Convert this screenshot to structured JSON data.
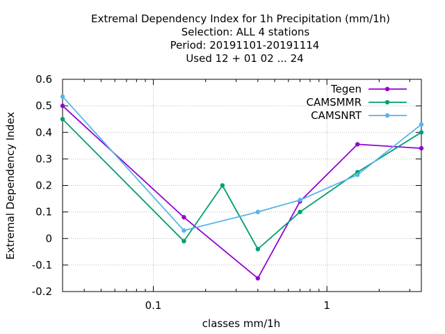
{
  "chart_data": {
    "type": "line",
    "title_lines": [
      "Extremal Dependency Index  for 1h Precipitation (mm/1h)",
      "Selection: ALL      4 stations",
      "Period: 20191101-20191114",
      "Used  12 + 01 02 ... 24"
    ],
    "xlabel": "classes mm/1h",
    "ylabel": "Extremal Dependency Index",
    "x_scale": "log",
    "xlim": [
      0.03,
      3.5
    ],
    "ylim": [
      -0.2,
      0.6
    ],
    "grid": true,
    "legend_position": "top-right",
    "x_ticks": [
      {
        "value": 0.1,
        "label": "0.1"
      },
      {
        "value": 1,
        "label": "1"
      }
    ],
    "y_ticks": [
      {
        "value": 0.6,
        "label": "0.6"
      },
      {
        "value": 0.5,
        "label": "0.5"
      },
      {
        "value": 0.4,
        "label": "0.4"
      },
      {
        "value": 0.3,
        "label": "0.3"
      },
      {
        "value": 0.2,
        "label": "0.2"
      },
      {
        "value": 0.1,
        "label": "0.1"
      },
      {
        "value": 0,
        "label": "0"
      },
      {
        "value": -0.1,
        "label": "-0.1"
      },
      {
        "value": -0.2,
        "label": "-0.2"
      }
    ],
    "series": [
      {
        "name": "Tegen",
        "color": "#9400d3",
        "points": [
          [
            0.03,
            0.5
          ],
          [
            0.15,
            0.08
          ],
          [
            0.4,
            -0.15
          ],
          [
            0.7,
            0.14
          ],
          [
            1.5,
            0.355
          ],
          [
            3.5,
            0.34
          ]
        ]
      },
      {
        "name": "CAMSMMR",
        "color": "#009e73",
        "points": [
          [
            0.03,
            0.45
          ],
          [
            0.15,
            -0.01
          ],
          [
            0.25,
            0.2
          ],
          [
            0.4,
            -0.04
          ],
          [
            0.7,
            0.1
          ],
          [
            1.5,
            0.25
          ],
          [
            3.5,
            0.4
          ]
        ]
      },
      {
        "name": "CAMSNRT",
        "color": "#56b4e9",
        "points": [
          [
            0.03,
            0.535
          ],
          [
            0.15,
            0.03
          ],
          [
            0.4,
            0.1
          ],
          [
            0.7,
            0.145
          ],
          [
            1.5,
            0.24
          ],
          [
            3.5,
            0.43
          ]
        ]
      }
    ]
  }
}
